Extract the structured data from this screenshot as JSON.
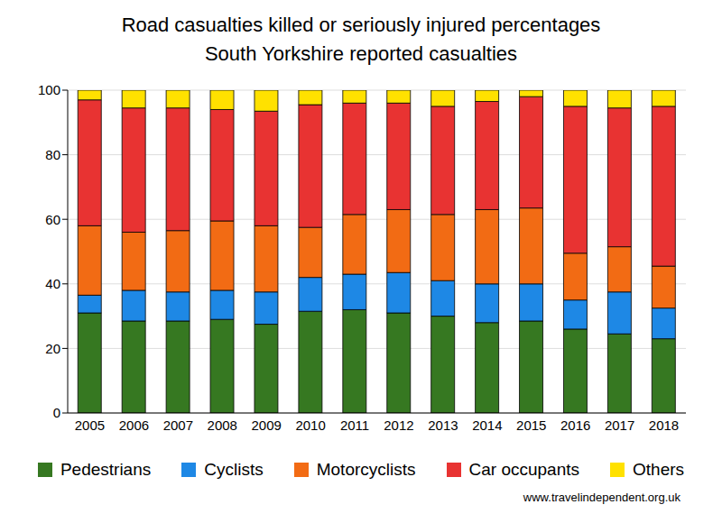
{
  "chart_data": {
    "type": "bar",
    "title": "Road casualties killed or seriously injured percentages",
    "subtitle": "South Yorkshire reported casualties",
    "source": "www.travelindependent.org.uk",
    "categories": [
      "2005",
      "2006",
      "2007",
      "2008",
      "2009",
      "2010",
      "2011",
      "2012",
      "2013",
      "2014",
      "2015",
      "2016",
      "2017",
      "2018"
    ],
    "series": [
      {
        "name": "Pedestrians",
        "color": "#367821",
        "values": [
          31,
          28.5,
          28.5,
          29,
          27.5,
          31.5,
          32,
          31,
          30,
          28,
          28.5,
          26,
          24.5,
          23
        ]
      },
      {
        "name": "Cyclists",
        "color": "#1e88e5",
        "values": [
          5.5,
          9.5,
          9,
          9,
          10,
          10.5,
          11,
          12.5,
          11,
          12,
          11.5,
          9,
          13,
          9.5
        ]
      },
      {
        "name": "Motorcyclists",
        "color": "#f26b14",
        "values": [
          21.5,
          18,
          19,
          21.5,
          20.5,
          15.5,
          18.5,
          19.5,
          20.5,
          23,
          23.5,
          14.5,
          14,
          13
        ]
      },
      {
        "name": "Car occupants",
        "color": "#e83332",
        "values": [
          39,
          38.5,
          38,
          34.5,
          35.5,
          38,
          34.5,
          33,
          33.5,
          33.5,
          34.5,
          45.5,
          43,
          49.5
        ]
      },
      {
        "name": "Others",
        "color": "#ffe100",
        "values": [
          3,
          5.5,
          5.5,
          6,
          6.5,
          4.5,
          4,
          4,
          5,
          3.5,
          2,
          5,
          5.5,
          5
        ]
      }
    ],
    "ylim": [
      0,
      100
    ],
    "yticks": [
      0,
      20,
      40,
      60,
      80,
      100
    ],
    "grid": true,
    "stacked": true,
    "legend": "bottom"
  }
}
